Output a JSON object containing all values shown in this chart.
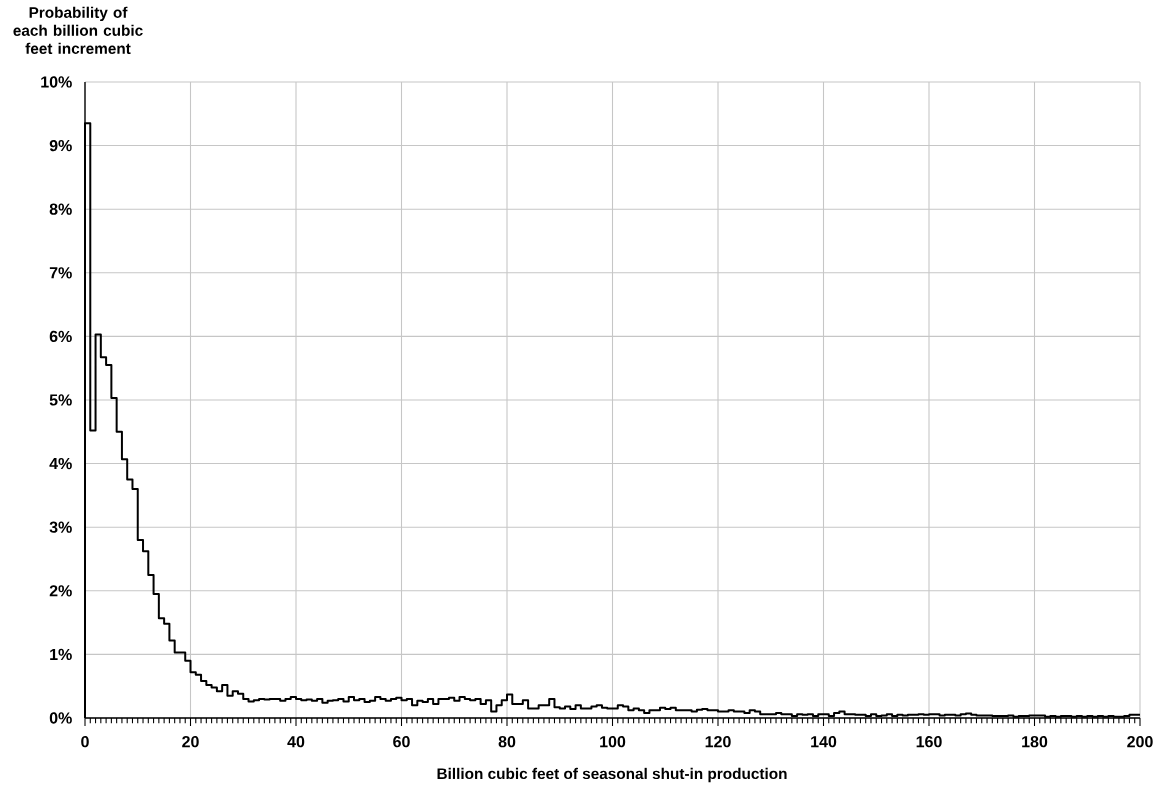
{
  "chart_data": {
    "type": "histogram",
    "ylabel": "Probability of each billion cubic feet increment",
    "xlabel": "Billion cubic feet of seasonal shut-in production",
    "bins": [
      0,
      1,
      2,
      3,
      4,
      5,
      6,
      7,
      8,
      9,
      10,
      11,
      12,
      13,
      14,
      15,
      16,
      17,
      18,
      19,
      20,
      21,
      22,
      23,
      24,
      25,
      26,
      27,
      28,
      29,
      30,
      31,
      32,
      33,
      34,
      35,
      36,
      37,
      38,
      39,
      40,
      41,
      42,
      43,
      44,
      45,
      46,
      47,
      48,
      49,
      50,
      51,
      52,
      53,
      54,
      55,
      56,
      57,
      58,
      59,
      60,
      61,
      62,
      63,
      64,
      65,
      66,
      67,
      68,
      69,
      70,
      71,
      72,
      73,
      74,
      75,
      76,
      77,
      78,
      79,
      80,
      81,
      82,
      83,
      84,
      85,
      86,
      87,
      88,
      89,
      90,
      91,
      92,
      93,
      94,
      95,
      96,
      97,
      98,
      99,
      100,
      101,
      102,
      103,
      104,
      105,
      106,
      107,
      108,
      109,
      110,
      111,
      112,
      113,
      114,
      115,
      116,
      117,
      118,
      119,
      120,
      121,
      122,
      123,
      124,
      125,
      126,
      127,
      128,
      129,
      130,
      131,
      132,
      133,
      134,
      135,
      136,
      137,
      138,
      139,
      140,
      141,
      142,
      143,
      144,
      145,
      146,
      147,
      148,
      149,
      150,
      151,
      152,
      153,
      154,
      155,
      156,
      157,
      158,
      159,
      160,
      161,
      162,
      163,
      164,
      165,
      166,
      167,
      168,
      169,
      170,
      171,
      172,
      173,
      174,
      175,
      176,
      177,
      178,
      179,
      180,
      181,
      182,
      183,
      184,
      185,
      186,
      187,
      188,
      189,
      190,
      191,
      192,
      193,
      194,
      195,
      196,
      197,
      198,
      199,
      200
    ],
    "values": [
      9.35,
      4.52,
      6.03,
      5.67,
      5.55,
      5.03,
      4.5,
      4.07,
      3.75,
      3.6,
      2.8,
      2.62,
      2.25,
      1.95,
      1.57,
      1.48,
      1.22,
      1.03,
      1.03,
      0.9,
      0.72,
      0.68,
      0.58,
      0.52,
      0.48,
      0.42,
      0.52,
      0.35,
      0.42,
      0.38,
      0.3,
      0.26,
      0.28,
      0.3,
      0.29,
      0.3,
      0.3,
      0.27,
      0.3,
      0.33,
      0.3,
      0.28,
      0.29,
      0.27,
      0.3,
      0.24,
      0.27,
      0.28,
      0.3,
      0.26,
      0.33,
      0.28,
      0.3,
      0.25,
      0.27,
      0.33,
      0.3,
      0.27,
      0.3,
      0.32,
      0.28,
      0.3,
      0.2,
      0.27,
      0.25,
      0.3,
      0.22,
      0.3,
      0.3,
      0.32,
      0.27,
      0.33,
      0.3,
      0.28,
      0.3,
      0.22,
      0.28,
      0.1,
      0.2,
      0.28,
      0.37,
      0.22,
      0.22,
      0.28,
      0.15,
      0.15,
      0.2,
      0.2,
      0.3,
      0.17,
      0.15,
      0.18,
      0.14,
      0.2,
      0.15,
      0.15,
      0.18,
      0.2,
      0.16,
      0.15,
      0.15,
      0.2,
      0.18,
      0.12,
      0.15,
      0.12,
      0.08,
      0.12,
      0.12,
      0.16,
      0.14,
      0.16,
      0.12,
      0.12,
      0.12,
      0.1,
      0.13,
      0.14,
      0.12,
      0.12,
      0.1,
      0.1,
      0.12,
      0.1,
      0.1,
      0.08,
      0.12,
      0.1,
      0.06,
      0.06,
      0.06,
      0.08,
      0.06,
      0.06,
      0.03,
      0.06,
      0.05,
      0.06,
      0.03,
      0.06,
      0.06,
      0.03,
      0.08,
      0.1,
      0.06,
      0.06,
      0.05,
      0.05,
      0.03,
      0.06,
      0.03,
      0.04,
      0.06,
      0.03,
      0.05,
      0.04,
      0.05,
      0.05,
      0.06,
      0.05,
      0.06,
      0.06,
      0.04,
      0.05,
      0.05,
      0.04,
      0.06,
      0.07,
      0.05,
      0.04,
      0.04,
      0.04,
      0.03,
      0.03,
      0.03,
      0.04,
      0.02,
      0.03,
      0.03,
      0.04,
      0.04,
      0.04,
      0.02,
      0.03,
      0.02,
      0.03,
      0.03,
      0.02,
      0.03,
      0.02,
      0.03,
      0.02,
      0.03,
      0.02,
      0.03,
      0.02,
      0.02,
      0.03,
      0.05,
      0.05
    ],
    "color": "#000000",
    "xlim": [
      0,
      200
    ],
    "xticks": [
      0,
      20,
      40,
      60,
      80,
      100,
      120,
      140,
      160,
      180,
      200
    ],
    "ylim": [
      0,
      10
    ],
    "yticks": [
      {
        "value": 0,
        "label": "0%"
      },
      {
        "value": 1,
        "label": "1%"
      },
      {
        "value": 2,
        "label": "2%"
      },
      {
        "value": 3,
        "label": "3%"
      },
      {
        "value": 4,
        "label": "4%"
      },
      {
        "value": 5,
        "label": "5%"
      },
      {
        "value": 6,
        "label": "6%"
      },
      {
        "value": 7,
        "label": "7%"
      },
      {
        "value": 8,
        "label": "8%"
      },
      {
        "value": 9,
        "label": "9%"
      },
      {
        "value": 10,
        "label": "10%"
      }
    ],
    "grid": true
  }
}
